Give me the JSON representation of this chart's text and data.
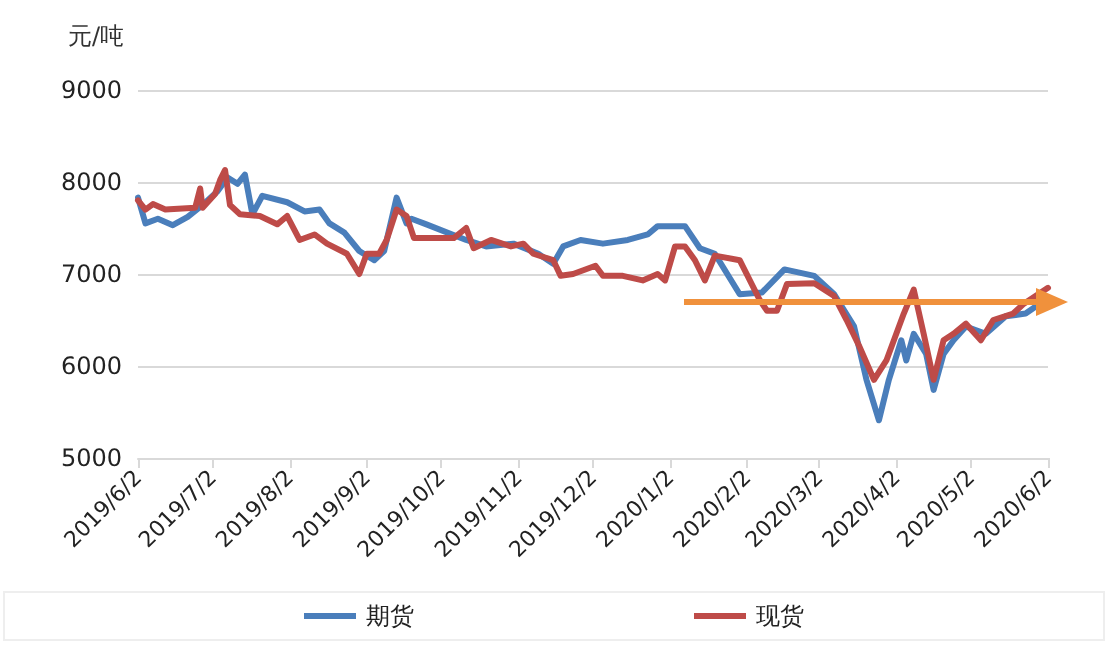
{
  "chart_data": {
    "type": "line",
    "ylabel": "元/吨",
    "xlim": [
      "2019-06-02",
      "2020-06-02"
    ],
    "xticks": [
      {
        "value": "2019-06-02",
        "label": "2019/6/2"
      },
      {
        "value": "2019-07-02",
        "label": "2019/7/2"
      },
      {
        "value": "2019-08-02",
        "label": "2019/8/2"
      },
      {
        "value": "2019-09-02",
        "label": "2019/9/2"
      },
      {
        "value": "2019-10-02",
        "label": "2019/10/2"
      },
      {
        "value": "2019-11-02",
        "label": "2019/11/2"
      },
      {
        "value": "2019-12-02",
        "label": "2019/12/2"
      },
      {
        "value": "2020-01-02",
        "label": "2020/1/2"
      },
      {
        "value": "2020-02-02",
        "label": "2020/2/2"
      },
      {
        "value": "2020-03-02",
        "label": "2020/3/2"
      },
      {
        "value": "2020-04-02",
        "label": "2020/4/2"
      },
      {
        "value": "2020-05-02",
        "label": "2020/5/2"
      },
      {
        "value": "2020-06-02",
        "label": "2020/6/2"
      }
    ],
    "ylim": [
      5000,
      9000
    ],
    "yticks": [
      5000,
      6000,
      7000,
      8000,
      9000
    ],
    "grid": "y",
    "legend": "bottom",
    "marker": "none",
    "line_style": "solid",
    "series": [
      {
        "name": "期货",
        "color": "#4a7ebb",
        "x": [
          "2019-06-02",
          "2019-06-05",
          "2019-06-10",
          "2019-06-16",
          "2019-06-22",
          "2019-06-28",
          "2019-07-04",
          "2019-07-08",
          "2019-07-12",
          "2019-07-15",
          "2019-07-18",
          "2019-07-22",
          "2019-08-01",
          "2019-08-08",
          "2019-08-14",
          "2019-08-18",
          "2019-08-24",
          "2019-08-30",
          "2019-09-05",
          "2019-09-09",
          "2019-09-14",
          "2019-09-18",
          "2019-09-20",
          "2019-09-26",
          "2019-10-12",
          "2019-10-20",
          "2019-10-31",
          "2019-11-10",
          "2019-11-16",
          "2019-11-20",
          "2019-11-27",
          "2019-12-06",
          "2019-12-16",
          "2019-12-24",
          "2019-12-28",
          "2020-01-04",
          "2020-01-08",
          "2020-01-14",
          "2020-01-20",
          "2020-01-30",
          "2020-02-08",
          "2020-02-17",
          "2020-02-29",
          "2020-03-08",
          "2020-03-16",
          "2020-03-21",
          "2020-03-26",
          "2020-03-30",
          "2020-04-04",
          "2020-04-06",
          "2020-04-09",
          "2020-04-14",
          "2020-04-17",
          "2020-04-21",
          "2020-04-25",
          "2020-04-30",
          "2020-05-08",
          "2020-05-16",
          "2020-05-24",
          "2020-06-01"
        ],
        "values": [
          7830,
          7550,
          7600,
          7530,
          7620,
          7750,
          7900,
          8050,
          7980,
          8080,
          7650,
          7850,
          7780,
          7680,
          7700,
          7550,
          7450,
          7250,
          7150,
          7250,
          7830,
          7550,
          7600,
          7540,
          7370,
          7300,
          7330,
          7220,
          7110,
          7300,
          7370,
          7330,
          7370,
          7430,
          7520,
          7520,
          7520,
          7280,
          7220,
          6780,
          6800,
          7050,
          6980,
          6780,
          6430,
          5850,
          5410,
          5850,
          6280,
          6060,
          6350,
          6130,
          5740,
          6130,
          6280,
          6430,
          6350,
          6540,
          6570,
          6720
        ]
      },
      {
        "name": "现货",
        "color": "#be4b48",
        "x": [
          "2019-06-02",
          "2019-06-05",
          "2019-06-08",
          "2019-06-13",
          "2019-06-25",
          "2019-06-27",
          "2019-06-28",
          "2019-07-03",
          "2019-07-05",
          "2019-07-07",
          "2019-07-09",
          "2019-07-13",
          "2019-07-21",
          "2019-07-28",
          "2019-08-01",
          "2019-08-06",
          "2019-08-12",
          "2019-08-17",
          "2019-08-25",
          "2019-08-30",
          "2019-09-02",
          "2019-09-07",
          "2019-09-10",
          "2019-09-14",
          "2019-09-18",
          "2019-09-21",
          "2019-09-26",
          "2019-10-01",
          "2019-10-07",
          "2019-10-12",
          "2019-10-15",
          "2019-10-22",
          "2019-10-30",
          "2019-11-04",
          "2019-11-08",
          "2019-11-16",
          "2019-11-19",
          "2019-11-24",
          "2019-12-03",
          "2019-12-06",
          "2019-12-14",
          "2019-12-22",
          "2019-12-28",
          "2019-12-31",
          "2020-01-04",
          "2020-01-08",
          "2020-01-12",
          "2020-01-16",
          "2020-01-20",
          "2020-01-30",
          "2020-02-07",
          "2020-02-10",
          "2020-02-14",
          "2020-02-18",
          "2020-02-29",
          "2020-03-08",
          "2020-03-13",
          "2020-03-18",
          "2020-03-24",
          "2020-03-29",
          "2020-04-05",
          "2020-04-09",
          "2020-04-13",
          "2020-04-17",
          "2020-04-21",
          "2020-04-25",
          "2020-04-30",
          "2020-05-06",
          "2020-05-11",
          "2020-05-19",
          "2020-05-23",
          "2020-06-02"
        ],
        "values": [
          7800,
          7700,
          7760,
          7700,
          7720,
          7930,
          7720,
          7870,
          8020,
          8130,
          7750,
          7650,
          7630,
          7540,
          7630,
          7370,
          7430,
          7330,
          7220,
          7000,
          7220,
          7220,
          7370,
          7700,
          7630,
          7390,
          7390,
          7390,
          7390,
          7500,
          7280,
          7370,
          7300,
          7330,
          7220,
          7150,
          6980,
          7000,
          7090,
          6980,
          6980,
          6930,
          7000,
          6930,
          7300,
          7300,
          7150,
          6930,
          7200,
          7150,
          6720,
          6600,
          6600,
          6890,
          6900,
          6760,
          6500,
          6220,
          5850,
          6060,
          6570,
          6830,
          6350,
          5850,
          6280,
          6350,
          6460,
          6280,
          6500,
          6570,
          6670,
          6850
        ]
      }
    ]
  }
}
